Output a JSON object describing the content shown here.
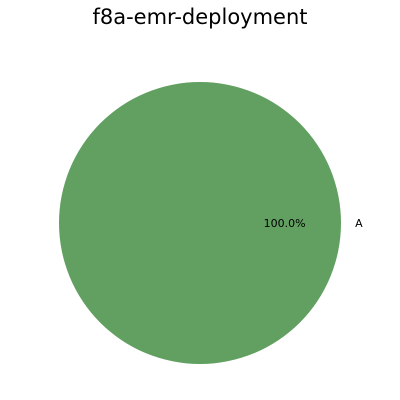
{
  "chart_data": {
    "type": "pie",
    "title": "f8a-emr-deployment",
    "labels": [
      "A"
    ],
    "values": [
      100
    ],
    "percent_labels": [
      "100.0%"
    ],
    "colors": [
      "#62a061"
    ],
    "legend": "none"
  }
}
